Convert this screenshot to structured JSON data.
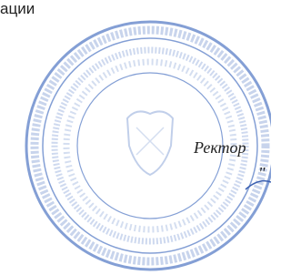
{
  "header_fragment": "ации",
  "signature": {
    "title": "Ректор",
    "quote": "\""
  }
}
